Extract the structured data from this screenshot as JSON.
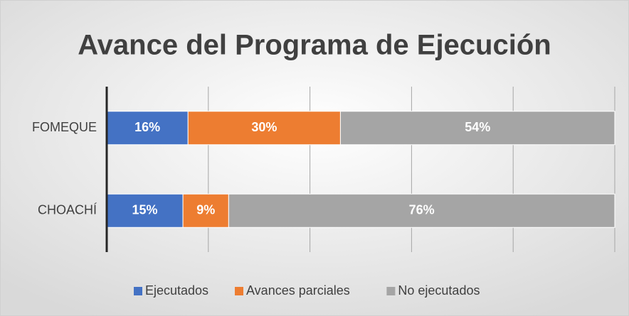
{
  "chart_data": {
    "type": "stacked-bar-horizontal",
    "title": "Avance del Programa de Ejecución",
    "categories": [
      "FOMEQUE",
      "CHOACHÍ"
    ],
    "series": [
      {
        "name": "Ejecutados",
        "color": "#4472c4",
        "values": [
          16,
          15
        ],
        "value_labels": [
          "16%",
          "15%"
        ]
      },
      {
        "name": "Avances parciales",
        "color": "#ed7d31",
        "values": [
          30,
          9
        ],
        "value_labels": [
          "30%",
          "9%"
        ]
      },
      {
        "name": "No ejecutados",
        "color": "#a5a5a5",
        "values": [
          54,
          76
        ],
        "value_labels": [
          "54%",
          "76%"
        ]
      }
    ],
    "xlim": [
      0,
      100
    ],
    "xticks": [
      20,
      40,
      60,
      80,
      100
    ],
    "grid": true,
    "legend": "bottom"
  }
}
